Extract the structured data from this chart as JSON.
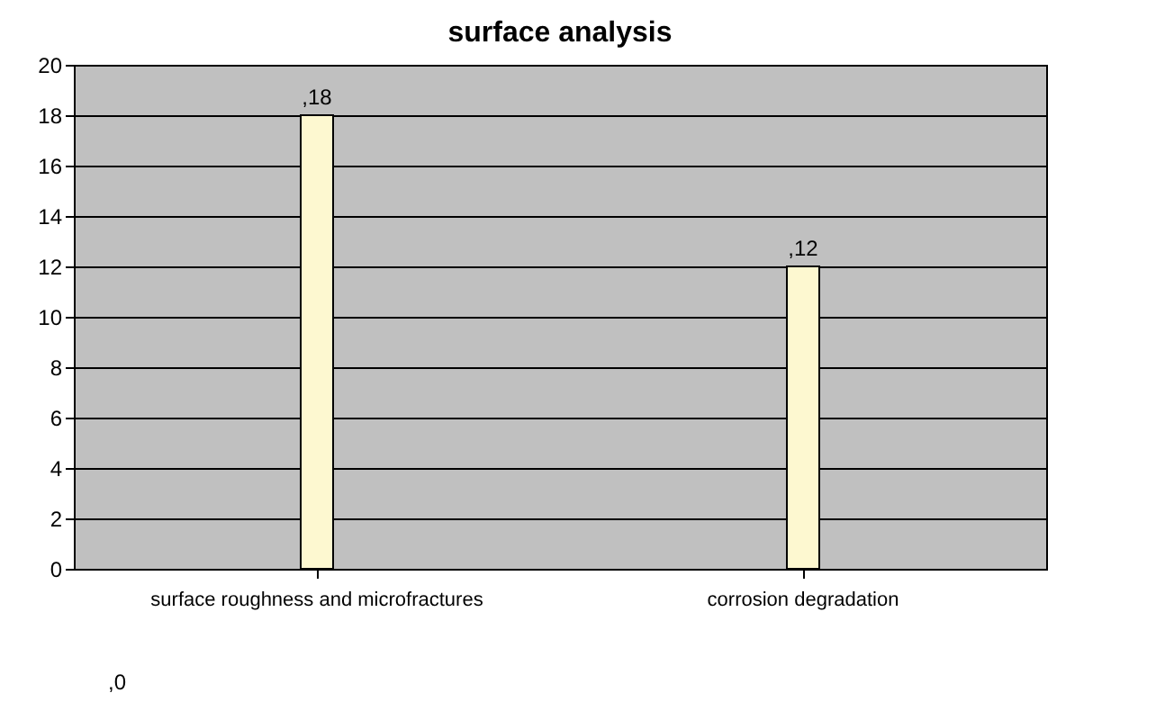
{
  "chart_data": {
    "type": "bar",
    "title": "surface analysis",
    "categories": [
      "surface roughness and microfractures",
      "corrosion degradation"
    ],
    "values": [
      18,
      12
    ],
    "color": "#fdf8d0",
    "value_labels": [
      ",18",
      ",12"
    ],
    "annotations": [
      ",0"
    ],
    "ylim": [
      0,
      20
    ],
    "yticks": [
      0,
      2,
      4,
      6,
      8,
      10,
      12,
      14,
      16,
      18,
      20
    ],
    "grid": "y"
  }
}
